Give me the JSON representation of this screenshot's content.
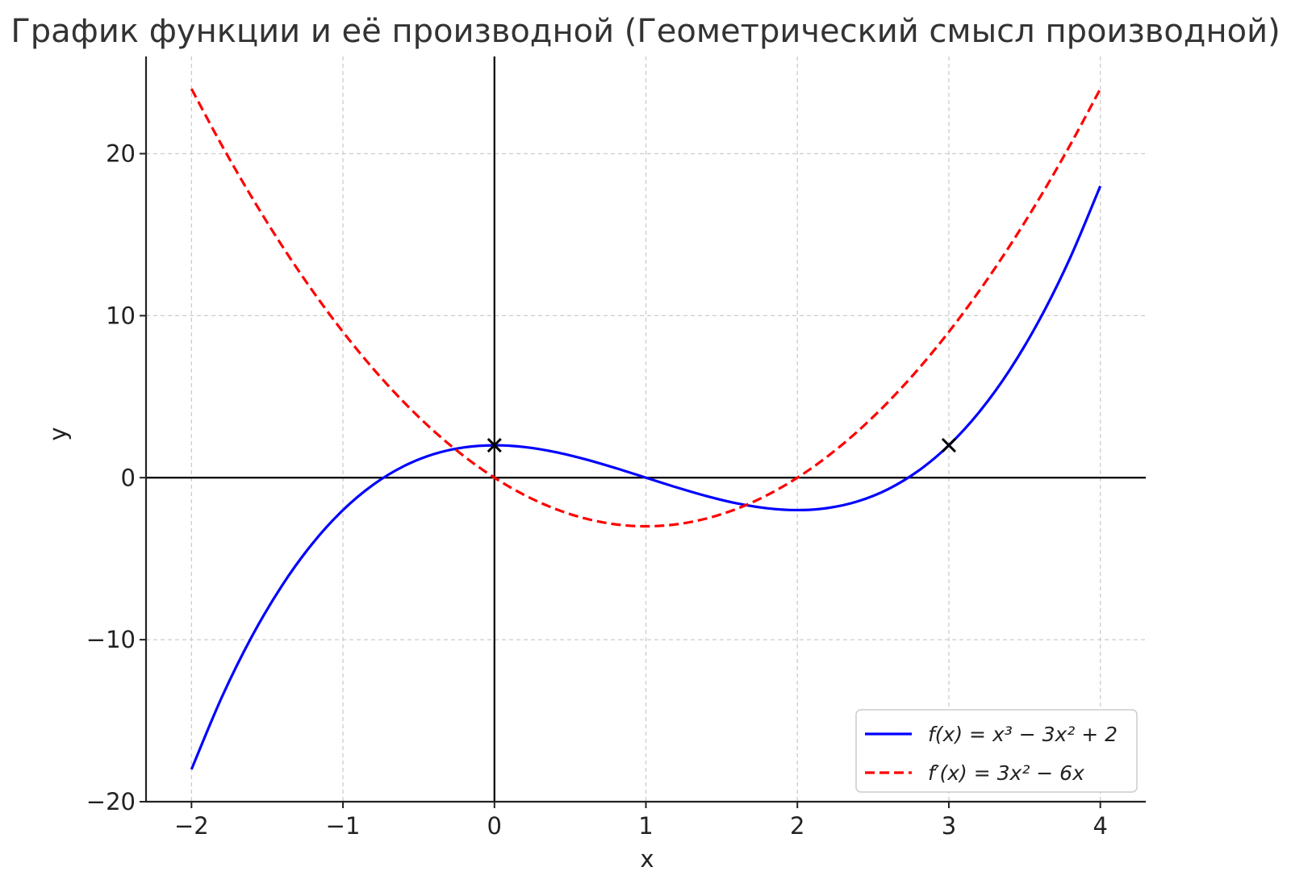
{
  "chart_data": {
    "type": "line",
    "title": "График функции и её производной (Геометрический смысл производной)",
    "xlabel": "x",
    "ylabel": "y",
    "xlim": [
      -2.3,
      4.3
    ],
    "ylim": [
      -20,
      26
    ],
    "x_ticks": [
      -2,
      -1,
      0,
      1,
      2,
      3,
      4
    ],
    "x_tick_labels": [
      "−2",
      "−1",
      "0",
      "1",
      "2",
      "3",
      "4"
    ],
    "y_ticks": [
      -20,
      -10,
      0,
      10,
      20
    ],
    "y_tick_labels": [
      "−20",
      "−10",
      "0",
      "10",
      "20"
    ],
    "grid": true,
    "legend_position": "lower-right",
    "series": [
      {
        "name": "f(x) = x³ − 3x² + 2",
        "color": "#0000ff",
        "style": "solid",
        "x": [
          -2,
          -1.8,
          -1.6,
          -1.4,
          -1.2,
          -1,
          -0.8,
          -0.6,
          -0.4,
          -0.2,
          0,
          0.2,
          0.4,
          0.6,
          0.8,
          1,
          1.2,
          1.4,
          1.6,
          1.8,
          2,
          2.2,
          2.4,
          2.6,
          2.8,
          3,
          3.2,
          3.4,
          3.6,
          3.8,
          4
        ],
        "y": [
          -18,
          -13.552,
          -9.776,
          -6.624,
          -4.048,
          -2,
          -0.432,
          0.704,
          1.456,
          1.872,
          2,
          1.888,
          1.584,
          1.136,
          0.592,
          0,
          -0.592,
          -1.136,
          -1.584,
          -1.888,
          -2,
          -1.872,
          -1.456,
          -0.704,
          0.432,
          2,
          4.048,
          6.624,
          9.776,
          13.552,
          18
        ]
      },
      {
        "name": "f′(x) = 3x² − 6x",
        "color": "#ff0000",
        "style": "dashed",
        "x": [
          -2,
          -1.8,
          -1.6,
          -1.4,
          -1.2,
          -1,
          -0.8,
          -0.6,
          -0.4,
          -0.2,
          0,
          0.2,
          0.4,
          0.6,
          0.8,
          1,
          1.2,
          1.4,
          1.6,
          1.8,
          2,
          2.2,
          2.4,
          2.6,
          2.8,
          3,
          3.2,
          3.4,
          3.6,
          3.8,
          4
        ],
        "y": [
          24,
          20.52,
          17.28,
          14.28,
          11.52,
          9,
          6.72,
          4.68,
          2.88,
          1.32,
          0,
          -1.08,
          -1.92,
          -2.52,
          -2.88,
          -3,
          -2.88,
          -2.52,
          -1.92,
          -1.08,
          0,
          1.32,
          2.88,
          4.68,
          6.72,
          9,
          11.52,
          14.28,
          17.28,
          20.52,
          24
        ]
      }
    ],
    "markers": [
      {
        "x": 0,
        "y": 2,
        "symbol": "x",
        "color": "#000000"
      },
      {
        "x": 3,
        "y": 2,
        "symbol": "x",
        "color": "#000000"
      }
    ]
  }
}
